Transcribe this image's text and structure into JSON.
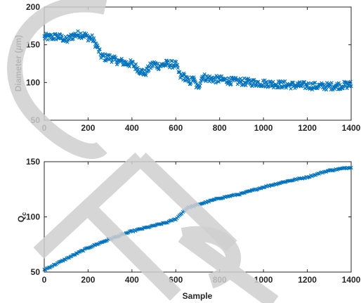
{
  "chart_data": [
    {
      "type": "scatter",
      "marker": "x",
      "title": "",
      "xlabel": "",
      "ylabel": "Diameter (μm)",
      "ylabel_prefix": "Diameter (",
      "ylabel_mu": "μ",
      "ylabel_suffix": "m)",
      "xlim": [
        0,
        1400
      ],
      "ylim": [
        50,
        200
      ],
      "xticks": [
        0,
        200,
        400,
        600,
        800,
        1000,
        1200,
        1400
      ],
      "yticks": [
        50,
        100,
        150,
        200
      ],
      "grid": false,
      "color": "#0072BD",
      "series_trend": {
        "x": [
          0,
          30,
          60,
          90,
          100,
          120,
          140,
          160,
          180,
          200,
          220,
          240,
          260,
          280,
          300,
          320,
          340,
          360,
          380,
          400,
          420,
          440,
          460,
          480,
          500,
          520,
          540,
          560,
          580,
          600,
          620,
          640,
          660,
          680,
          700,
          720,
          740,
          760,
          780,
          800,
          850,
          900,
          950,
          1000,
          1050,
          1100,
          1150,
          1200,
          1250,
          1300,
          1350,
          1400
        ],
        "y": [
          160,
          160,
          161,
          158,
          155,
          160,
          163,
          164,
          163,
          160,
          158,
          148,
          135,
          133,
          133,
          130,
          128,
          127,
          125,
          125,
          120,
          115,
          112,
          120,
          125,
          122,
          123,
          125,
          124,
          124,
          108,
          108,
          100,
          105,
          92,
          108,
          106,
          105,
          104,
          104,
          102,
          101,
          100,
          99,
          98,
          97,
          96,
          96,
          95,
          95,
          96,
          97
        ]
      },
      "spread": 5
    },
    {
      "type": "scatter",
      "marker": "x",
      "title": "",
      "xlabel": "Sample",
      "ylabel": "Qc",
      "ylabel_main": "Q",
      "ylabel_sub": "c",
      "xlim": [
        0,
        1400
      ],
      "ylim": [
        50,
        150
      ],
      "xticks": [
        0,
        200,
        400,
        600,
        800,
        1000,
        1200,
        1400
      ],
      "yticks": [
        50,
        100,
        150
      ],
      "grid": false,
      "color": "#0072BD",
      "series_trend": {
        "x": [
          0,
          100,
          200,
          300,
          400,
          500,
          560,
          600,
          650,
          700,
          800,
          900,
          1000,
          1100,
          1200,
          1280,
          1300,
          1400
        ],
        "y": [
          52,
          62,
          72,
          80,
          87,
          92,
          95,
          98,
          108,
          111,
          117,
          121,
          127,
          132,
          136,
          141,
          142,
          145
        ]
      },
      "spread": 0.6
    }
  ]
}
